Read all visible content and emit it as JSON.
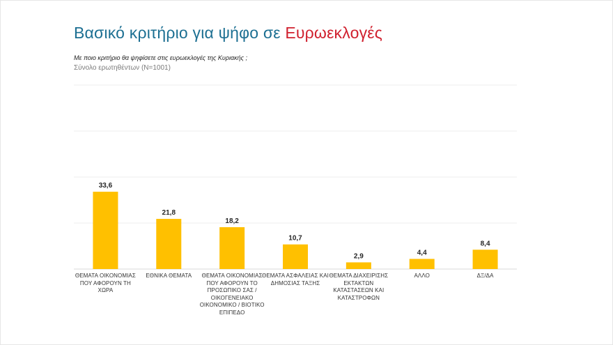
{
  "header": {
    "title_part1": "Βασικό κριτήριο για ψήφο σε",
    "title_part2": "Ευρωεκλογές",
    "question": "Με ποιο κριτήριο θα ψηφίσετε στις ευρωεκλογές της Κυριακής ;",
    "base": "Σύνολο ερωτηθέντων (N=1001)"
  },
  "colors": {
    "bar": "#ffc000",
    "title_primary": "#1c6f92",
    "title_accent": "#d0202e",
    "gridline": "#ececec"
  },
  "chart_data": {
    "type": "bar",
    "title": "Βασικό κριτήριο για ψήφο σε Ευρωεκλογές",
    "categories": [
      "ΘΕΜΑΤΑ ΟΙΚΟΝΟΜΙΑΣ ΠΟΥ ΑΦΟΡΟΥΝ ΤΗ ΧΩΡΑ",
      "ΕΘΝΙΚΑ ΘΕΜΑΤΑ",
      "ΘΕΜΑΤΑ ΟΙΚΟΝΟΜΙΑΣ ΠΟΥ ΑΦΟΡΟΥΝ ΤΟ ΠΡΟΣΩΠΙΚΟ ΣΑΣ / ΟΙΚΟΓΕΝΕΙΑΚΟ ΟΙΚΟΝΟΜΙΚΟ / ΒΙΟΤΙΚΟ ΕΠΙΠΕΔΟ",
      "ΘΕΜΑΤΑ ΑΣΦΑΛΕΙΑΣ ΚΑΙ ΔΗΜΟΣΙΑΣ ΤΑΞΗΣ",
      "ΘΕΜΑΤΑ ΔΙΑΧΕΙΡΙΣΗΣ ΕΚΤΑΚΤΩΝ ΚΑΤΑΣΤΑΣΕΩΝ ΚΑΙ ΚΑΤΑΣΤΡΟΦΩΝ",
      "ΑΛΛΟ",
      "ΔΞ/ΔΑ"
    ],
    "values": [
      33.6,
      21.8,
      18.2,
      10.7,
      2.9,
      4.4,
      8.4
    ],
    "value_labels": [
      "33,6",
      "21,8",
      "18,2",
      "10,7",
      "2,9",
      "4,4",
      "8,4"
    ],
    "xlabel": "",
    "ylabel": "",
    "ylim": [
      0,
      100
    ],
    "gridlines": [
      0,
      20,
      40,
      60,
      80
    ],
    "grid": true,
    "legend": "none"
  }
}
